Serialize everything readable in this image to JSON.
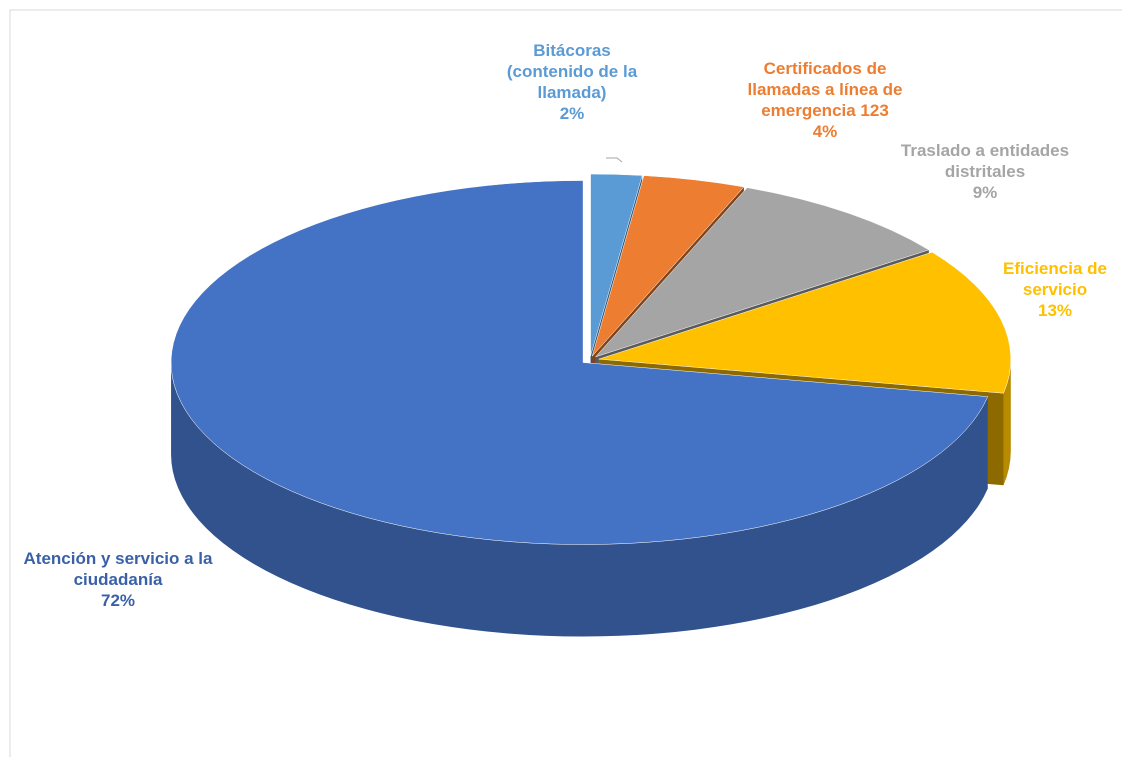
{
  "chart_data": {
    "type": "pie3d",
    "categories": [
      "Bitácoras (contenido de la llamada)",
      "Certificados de llamadas a línea de emergencia 123",
      "Traslado a entidades distritales",
      "Eficiencia de servicio",
      "Atención y servicio a la ciudadanía"
    ],
    "values": [
      2,
      4,
      9,
      13,
      72
    ],
    "value_labels": [
      "2%",
      "4%",
      "9%",
      "13%",
      "72%"
    ],
    "colors": [
      "#5b9bd5",
      "#ed7d31",
      "#a5a5a5",
      "#ffc000",
      "#4472c4"
    ]
  }
}
